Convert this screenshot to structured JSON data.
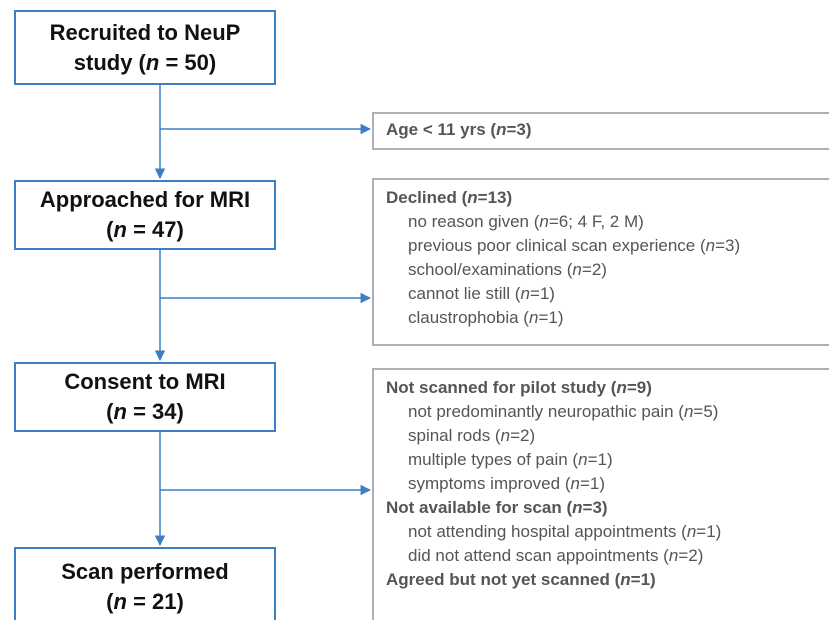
{
  "steps": [
    {
      "lines": [
        "Recruited to NeuP",
        "study (n = 50)"
      ]
    },
    {
      "lines": [
        "Approached for MRI",
        "(n = 47)"
      ]
    },
    {
      "lines": [
        "Consent to MRI",
        "(n = 34)"
      ]
    },
    {
      "lines": [
        "Scan performed",
        "(n = 21)"
      ]
    }
  ],
  "exclusions": [
    {
      "groups": [
        {
          "heading": "Age < 11 yrs (n=3)",
          "items": []
        }
      ]
    },
    {
      "groups": [
        {
          "heading": "Declined (n=13)",
          "items": [
            "no reason given (n=6; 4 F, 2 M)",
            "previous poor clinical scan experience (n=3)",
            "school/examinations (n=2)",
            "cannot lie still (n=1)",
            "claustrophobia (n=1)"
          ]
        }
      ]
    },
    {
      "groups": [
        {
          "heading": "Not scanned for pilot study (n=9)",
          "items": [
            "not predominantly neuropathic pain (n=5)",
            "spinal rods (n=2)",
            "multiple types of pain (n=1)",
            "symptoms improved (n=1)"
          ]
        },
        {
          "heading": "Not available for scan (n=3)",
          "items": [
            "not attending hospital appointments (n=1)",
            "did not attend scan appointments (n=2)"
          ]
        },
        {
          "heading": "Agreed but not yet scanned (n=1)",
          "items": []
        }
      ]
    }
  ]
}
